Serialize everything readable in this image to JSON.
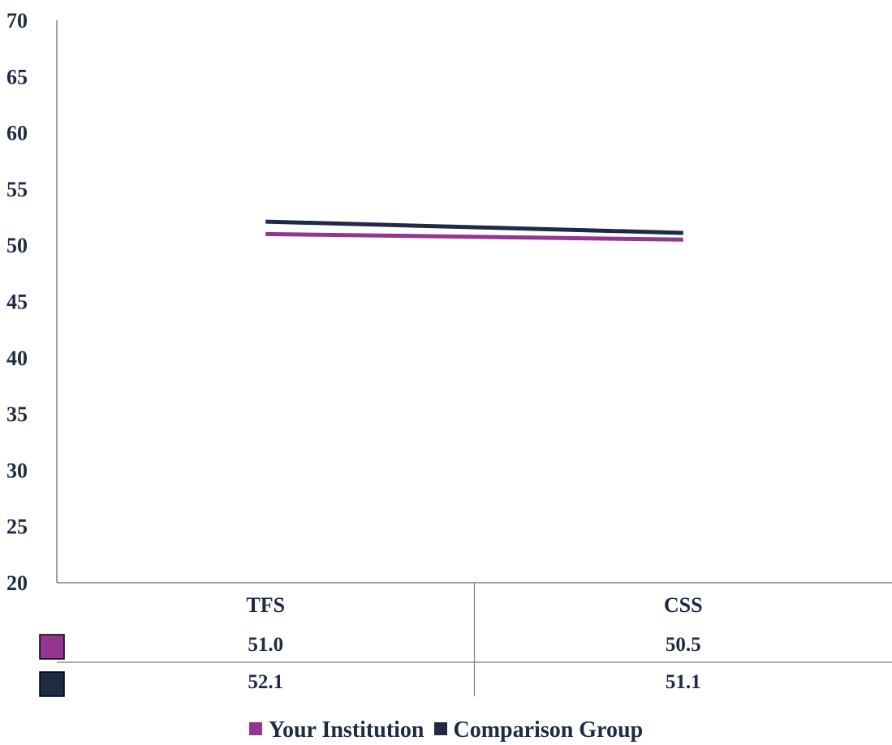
{
  "chart_data": {
    "type": "line",
    "categories": [
      "TFS",
      "CSS"
    ],
    "ylim": [
      20,
      70
    ],
    "yticks": [
      20,
      25,
      30,
      35,
      40,
      45,
      50,
      55,
      60,
      65,
      70
    ],
    "grid": false,
    "legend_position": "bottom",
    "series": [
      {
        "name": "Your Institution",
        "values": [
          51.0,
          50.5
        ],
        "labels": [
          "51.0",
          "50.5"
        ],
        "color": "#93368f"
      },
      {
        "name": "Comparison Group",
        "values": [
          52.1,
          51.1
        ],
        "labels": [
          "52.1",
          "51.1"
        ],
        "color": "#1f2a44"
      }
    ]
  }
}
